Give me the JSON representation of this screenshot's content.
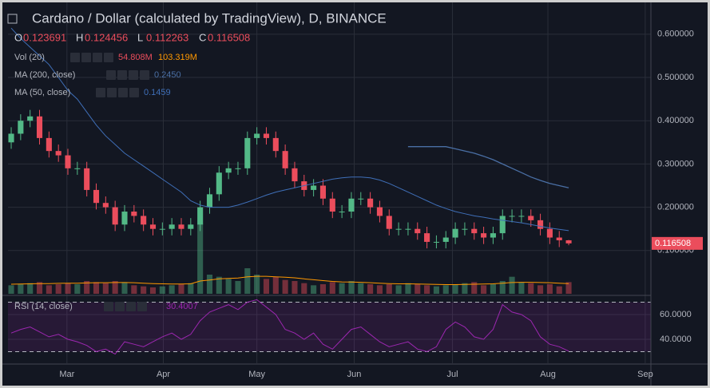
{
  "chart_data": {
    "type": "candlestick",
    "title": "Cardano / Dollar (calculated by TradingView), D, BINANCE",
    "ohlc_legend": [
      {
        "key": "O",
        "value": "0.123691"
      },
      {
        "key": "H",
        "value": "0.124456"
      },
      {
        "key": "L",
        "value": "0.112263"
      },
      {
        "key": "C",
        "value": "0.116508"
      }
    ],
    "indicators": [
      {
        "name": "Vol (20)",
        "values": [
          "54.808M",
          "103.319M"
        ]
      },
      {
        "name": "MA (200, close)",
        "values": [
          "0.2450"
        ]
      },
      {
        "name": "MA (50, close)",
        "values": [
          "0.1459"
        ]
      }
    ],
    "price_label": "0.116508",
    "up_color": "#53b987",
    "down_color": "#eb4d5c",
    "open": [
      0.35,
      0.37,
      0.4,
      0.41,
      0.36,
      0.33,
      0.32,
      0.29,
      0.29,
      0.24,
      0.21,
      0.2,
      0.16,
      0.19,
      0.18,
      0.16,
      0.15,
      0.15,
      0.16,
      0.15,
      0.16,
      0.2,
      0.23,
      0.28,
      0.29,
      0.29,
      0.36,
      0.37,
      0.36,
      0.33,
      0.29,
      0.26,
      0.24,
      0.25,
      0.22,
      0.19,
      0.19,
      0.22,
      0.22,
      0.2,
      0.18,
      0.15,
      0.15,
      0.15,
      0.14,
      0.12,
      0.12,
      0.13,
      0.15,
      0.15,
      0.14,
      0.13,
      0.14,
      0.18,
      0.18,
      0.18,
      0.17,
      0.15,
      0.13,
      0.123691
    ],
    "high": [
      0.385,
      0.415,
      0.425,
      0.425,
      0.375,
      0.345,
      0.335,
      0.305,
      0.305,
      0.255,
      0.225,
      0.215,
      0.205,
      0.205,
      0.195,
      0.175,
      0.165,
      0.175,
      0.175,
      0.175,
      0.215,
      0.245,
      0.295,
      0.305,
      0.305,
      0.375,
      0.385,
      0.385,
      0.375,
      0.345,
      0.305,
      0.275,
      0.265,
      0.265,
      0.235,
      0.205,
      0.235,
      0.235,
      0.235,
      0.215,
      0.195,
      0.165,
      0.165,
      0.165,
      0.155,
      0.135,
      0.145,
      0.165,
      0.165,
      0.165,
      0.155,
      0.155,
      0.195,
      0.195,
      0.195,
      0.195,
      0.185,
      0.165,
      0.145,
      0.124456
    ],
    "low": [
      0.335,
      0.355,
      0.385,
      0.345,
      0.315,
      0.305,
      0.275,
      0.275,
      0.225,
      0.195,
      0.185,
      0.145,
      0.145,
      0.165,
      0.145,
      0.135,
      0.135,
      0.135,
      0.135,
      0.135,
      0.145,
      0.185,
      0.215,
      0.265,
      0.275,
      0.275,
      0.345,
      0.345,
      0.315,
      0.275,
      0.245,
      0.225,
      0.225,
      0.205,
      0.175,
      0.175,
      0.175,
      0.205,
      0.185,
      0.165,
      0.135,
      0.135,
      0.135,
      0.125,
      0.105,
      0.105,
      0.105,
      0.115,
      0.135,
      0.125,
      0.115,
      0.115,
      0.125,
      0.165,
      0.165,
      0.155,
      0.135,
      0.115,
      0.108,
      0.112263
    ],
    "close": [
      0.37,
      0.4,
      0.41,
      0.36,
      0.33,
      0.32,
      0.29,
      0.29,
      0.24,
      0.21,
      0.2,
      0.16,
      0.19,
      0.18,
      0.16,
      0.15,
      0.15,
      0.16,
      0.15,
      0.16,
      0.2,
      0.23,
      0.28,
      0.29,
      0.29,
      0.36,
      0.37,
      0.36,
      0.33,
      0.29,
      0.26,
      0.24,
      0.25,
      0.22,
      0.19,
      0.19,
      0.22,
      0.22,
      0.2,
      0.18,
      0.15,
      0.15,
      0.15,
      0.14,
      0.12,
      0.12,
      0.13,
      0.15,
      0.15,
      0.14,
      0.13,
      0.14,
      0.18,
      0.18,
      0.18,
      0.17,
      0.15,
      0.13,
      0.123691,
      0.116508
    ],
    "volume": [
      40,
      45,
      50,
      55,
      40,
      45,
      50,
      45,
      60,
      55,
      50,
      60,
      55,
      40,
      35,
      30,
      35,
      40,
      45,
      50,
      330,
      90,
      80,
      70,
      60,
      120,
      90,
      70,
      80,
      65,
      60,
      50,
      40,
      45,
      55,
      50,
      60,
      50,
      45,
      40,
      45,
      40,
      50,
      45,
      40,
      35,
      40,
      45,
      50,
      55,
      40,
      45,
      60,
      80,
      55,
      50,
      40,
      45,
      35,
      54.8
    ],
    "volume_ma": [
      45,
      46,
      47,
      48,
      48,
      49,
      50,
      50,
      51,
      52,
      52,
      53,
      53,
      52,
      50,
      48,
      47,
      46,
      46,
      47,
      60,
      65,
      70,
      72,
      74,
      80,
      82,
      82,
      80,
      78,
      75,
      70,
      66,
      62,
      58,
      56,
      55,
      54,
      52,
      50,
      48,
      47,
      47,
      46,
      45,
      44,
      43,
      43,
      44,
      45,
      46,
      47,
      50,
      53,
      54,
      54,
      53,
      52,
      50,
      48
    ],
    "ma200": [
      null,
      null,
      null,
      null,
      null,
      null,
      null,
      null,
      null,
      null,
      null,
      null,
      null,
      null,
      null,
      null,
      null,
      null,
      null,
      null,
      null,
      null,
      null,
      null,
      null,
      null,
      null,
      null,
      null,
      null,
      null,
      null,
      null,
      null,
      null,
      null,
      null,
      null,
      null,
      null,
      null,
      null,
      0.34,
      0.34,
      0.34,
      0.34,
      0.34,
      0.335,
      0.33,
      0.325,
      0.318,
      0.31,
      0.3,
      0.29,
      0.28,
      0.27,
      0.262,
      0.255,
      0.25,
      0.245
    ],
    "ma50": [
      0.614,
      0.59,
      0.57,
      0.55,
      0.53,
      0.5,
      0.47,
      0.45,
      0.42,
      0.39,
      0.365,
      0.345,
      0.325,
      0.31,
      0.295,
      0.28,
      0.265,
      0.25,
      0.235,
      0.215,
      0.205,
      0.2,
      0.2,
      0.2,
      0.205,
      0.212,
      0.22,
      0.228,
      0.235,
      0.24,
      0.245,
      0.25,
      0.255,
      0.26,
      0.265,
      0.268,
      0.27,
      0.27,
      0.268,
      0.263,
      0.255,
      0.245,
      0.235,
      0.225,
      0.215,
      0.205,
      0.197,
      0.19,
      0.185,
      0.18,
      0.177,
      0.173,
      0.17,
      0.167,
      0.164,
      0.16,
      0.156,
      0.152,
      0.149,
      0.1459
    ],
    "ylim": [
      0,
      0.679
    ],
    "yticks": [
      {
        "value": 0.1,
        "label": "0.100000"
      },
      {
        "value": 0.2,
        "label": "0.200000"
      },
      {
        "value": 0.3,
        "label": "0.300000"
      },
      {
        "value": 0.4,
        "label": "0.400000"
      },
      {
        "value": 0.5,
        "label": "0.500000"
      },
      {
        "value": 0.6,
        "label": "0.600000"
      }
    ],
    "volume_lim": [
      0,
      1380
    ],
    "xlim": [
      -0.34,
      67.7
    ],
    "xticks": [
      {
        "value": 5.9,
        "label": "Mar"
      },
      {
        "value": 16.1,
        "label": "Apr"
      },
      {
        "value": 26.0,
        "label": "May"
      },
      {
        "value": 36.3,
        "label": "Jun"
      },
      {
        "value": 46.7,
        "label": "Jul"
      },
      {
        "value": 56.8,
        "label": "Aug"
      },
      {
        "value": 67.1,
        "label": "Sep"
      }
    ],
    "rsi": {
      "name": "RSI (14, close)",
      "value_label": "30.4007",
      "color": "#9c27b0",
      "values": [
        45,
        48,
        50,
        46,
        42,
        44,
        40,
        38,
        35,
        30,
        32,
        28,
        38,
        36,
        34,
        38,
        42,
        45,
        40,
        44,
        55,
        62,
        65,
        68,
        64,
        70,
        72,
        66,
        60,
        48,
        45,
        40,
        45,
        36,
        32,
        40,
        48,
        50,
        44,
        38,
        34,
        36,
        38,
        32,
        30,
        34,
        48,
        54,
        50,
        42,
        40,
        48,
        68,
        62,
        60,
        55,
        42,
        36,
        34,
        30.4007
      ],
      "ylim": [
        20.6,
        74.2
      ],
      "yticks": [
        {
          "value": 40,
          "label": "40.0000"
        },
        {
          "value": 60,
          "label": "60.0000"
        }
      ],
      "bands": [
        30,
        70
      ]
    }
  }
}
